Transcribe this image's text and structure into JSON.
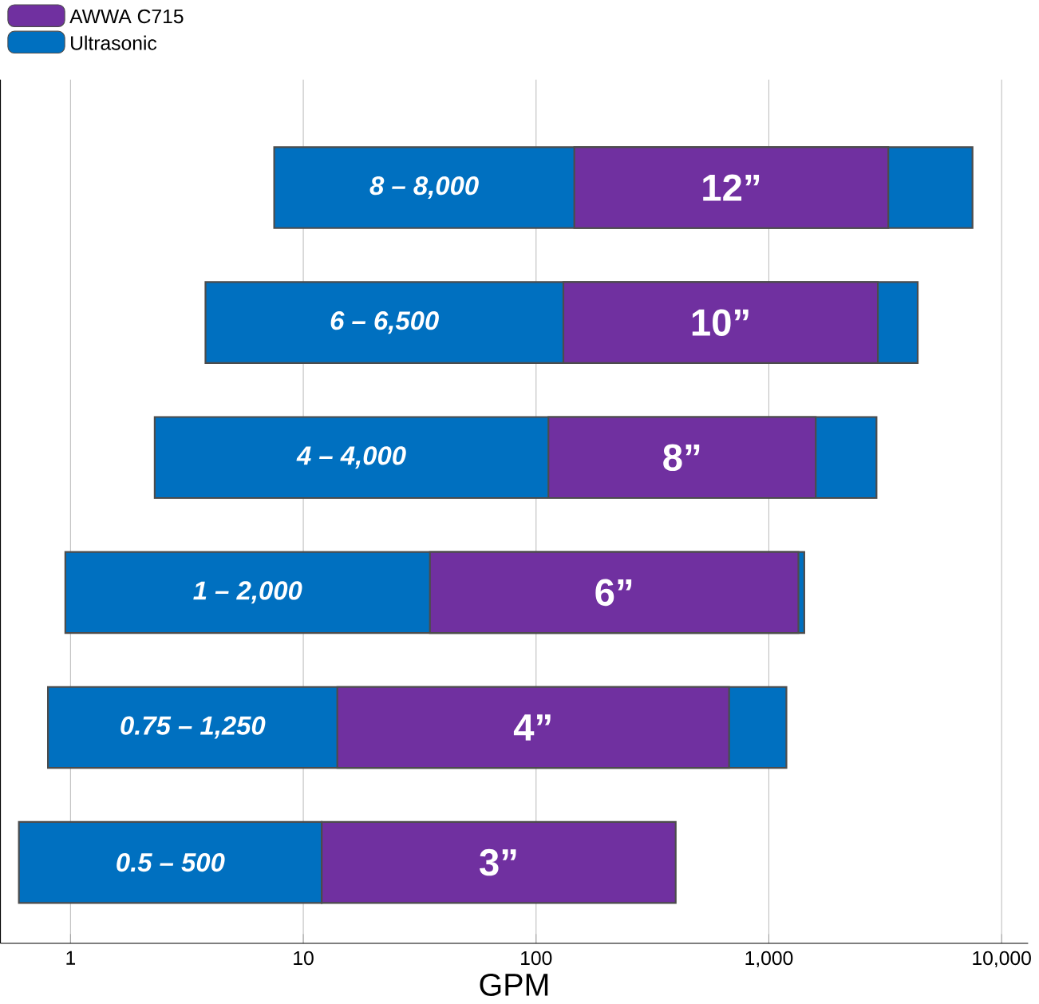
{
  "chart_data": {
    "type": "bar",
    "orientation": "horizontal",
    "xlabel": "GPM",
    "log": "x",
    "grid": "x",
    "legend": "top left",
    "tick_labels": "x",
    "categories": [
      "12”",
      "10”",
      "8”",
      "6”",
      "4”",
      "3”"
    ],
    "xlim": [
      0.5,
      13000
    ],
    "xticks": [
      1,
      10,
      100,
      {
        "value": 1000,
        "label": "1,000"
      },
      {
        "value": 10000,
        "label": "10,000"
      }
    ],
    "series": [
      {
        "name": "Ultrasonic",
        "color": "#0070c0",
        "base": [
          7.5,
          3.8,
          2.3,
          0.95,
          0.8,
          0.6
        ],
        "values": [
          7492,
          4356,
          2898,
          1419,
          1189,
          11.4
        ]
      },
      {
        "name": "AWWA C715",
        "color": "#7030a0",
        "base": [
          146,
          131,
          113,
          35,
          14,
          12
        ],
        "values": [
          3114,
          2809,
          1477,
          1305,
          661,
          386
        ]
      }
    ],
    "annotations": [
      "8 – 8,000",
      "6 – 6,500",
      "4 – 4,000",
      "1 – 2,000",
      "0.75 – 1,250",
      "0.5 – 500"
    ]
  }
}
